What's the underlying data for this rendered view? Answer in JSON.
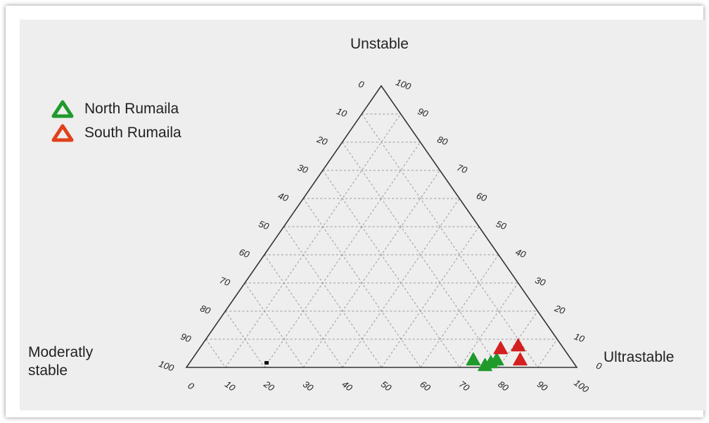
{
  "chart_data": {
    "type": "scatter",
    "subtype": "ternary",
    "apex_labels": {
      "top": "Unstable",
      "left": "Moderatly stable",
      "right": "Ultrastable"
    },
    "ticks": {
      "left_edge": [
        "0",
        "10",
        "20",
        "30",
        "40",
        "50",
        "60",
        "70",
        "80",
        "90",
        "100"
      ],
      "right_edge": [
        "100",
        "90",
        "80",
        "70",
        "60",
        "50",
        "40",
        "30",
        "20",
        "10",
        "0"
      ],
      "bottom_edge": [
        "0",
        "10",
        "20",
        "30",
        "40",
        "50",
        "60",
        "70",
        "80",
        "90",
        "100"
      ]
    },
    "grid": true,
    "legend_position": "top-left",
    "series": [
      {
        "name": "North Rumaila",
        "color": "#1f9a2b",
        "marker": "triangle",
        "points": [
          {
            "unstable": 3,
            "ultrastable": 72
          },
          {
            "unstable": 1,
            "ultrastable": 76
          },
          {
            "unstable": 2,
            "ultrastable": 77
          },
          {
            "unstable": 3,
            "ultrastable": 78
          }
        ]
      },
      {
        "name": "South Rumaila",
        "color": "#d42020",
        "marker": "triangle",
        "points": [
          {
            "unstable": 7,
            "ultrastable": 77
          },
          {
            "unstable": 8,
            "ultrastable": 81
          },
          {
            "unstable": 3,
            "ultrastable": 84
          }
        ]
      }
    ]
  }
}
